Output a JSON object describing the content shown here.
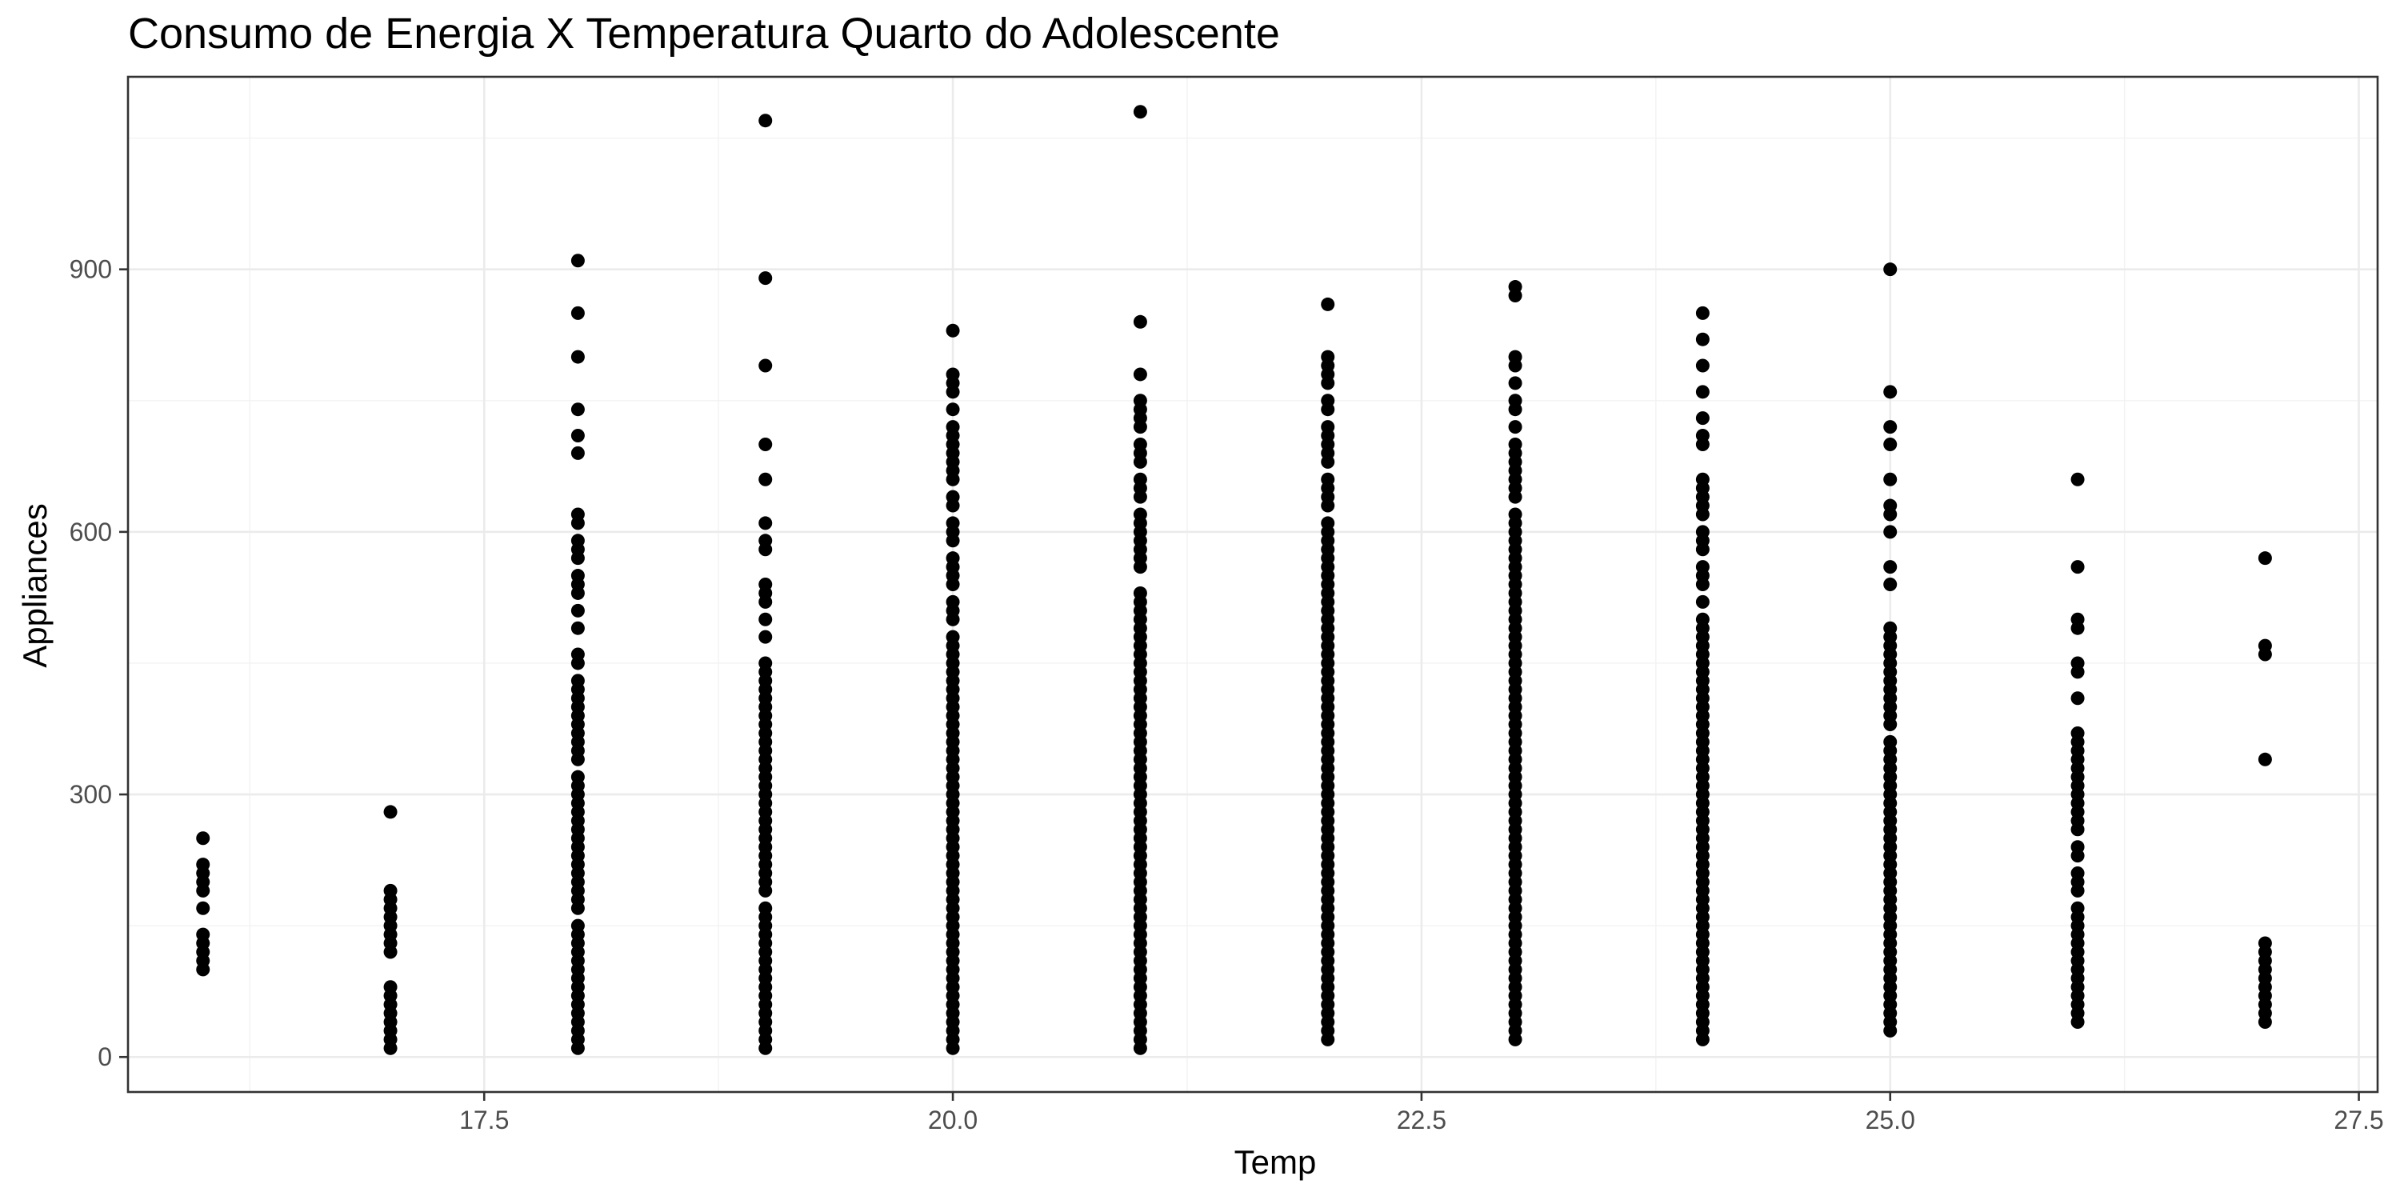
{
  "chart_data": {
    "type": "scatter",
    "title": "Consumo de Energia X Temperatura Quarto do Adolescente",
    "xlabel": "Temp",
    "ylabel": "Appliances",
    "xlim": [
      15.6,
      27.6
    ],
    "ylim": [
      -40,
      1120
    ],
    "x_ticks": [
      17.5,
      20.0,
      22.5,
      25.0,
      27.5
    ],
    "x_tick_labels": [
      "17.5",
      "20.0",
      "22.5",
      "25.0",
      "27.5"
    ],
    "y_ticks": [
      0,
      300,
      600,
      900
    ],
    "y_tick_labels": [
      "0",
      "300",
      "600",
      "900"
    ],
    "grid": true,
    "legend": "none",
    "point_color": "#000000",
    "series": [
      {
        "x": 16,
        "values": [
          100,
          110,
          120,
          130,
          140,
          170,
          190,
          200,
          210,
          220,
          250
        ]
      },
      {
        "x": 17,
        "values": [
          10,
          20,
          30,
          40,
          50,
          60,
          70,
          80,
          120,
          130,
          140,
          150,
          160,
          170,
          180,
          190,
          280
        ]
      },
      {
        "x": 18,
        "values": [
          10,
          20,
          30,
          40,
          50,
          60,
          70,
          80,
          90,
          100,
          110,
          120,
          130,
          140,
          150,
          170,
          180,
          190,
          200,
          210,
          220,
          230,
          240,
          250,
          260,
          270,
          280,
          290,
          300,
          310,
          320,
          340,
          350,
          360,
          370,
          380,
          390,
          400,
          410,
          420,
          430,
          450,
          460,
          490,
          510,
          530,
          540,
          550,
          570,
          580,
          590,
          610,
          620,
          690,
          710,
          740,
          800,
          850,
          910
        ]
      },
      {
        "x": 19,
        "values": [
          10,
          20,
          30,
          40,
          50,
          60,
          70,
          80,
          90,
          100,
          110,
          120,
          130,
          140,
          150,
          160,
          170,
          190,
          200,
          210,
          220,
          230,
          240,
          250,
          260,
          270,
          280,
          290,
          300,
          310,
          320,
          330,
          340,
          350,
          360,
          370,
          380,
          390,
          400,
          410,
          420,
          430,
          440,
          450,
          480,
          500,
          520,
          530,
          540,
          580,
          590,
          610,
          660,
          700,
          790,
          890,
          1070
        ]
      },
      {
        "x": 20,
        "values": [
          10,
          20,
          30,
          40,
          50,
          60,
          70,
          80,
          90,
          100,
          110,
          120,
          130,
          140,
          150,
          160,
          170,
          180,
          190,
          200,
          210,
          220,
          230,
          240,
          250,
          260,
          270,
          280,
          290,
          300,
          310,
          320,
          330,
          340,
          350,
          360,
          370,
          380,
          390,
          400,
          410,
          420,
          430,
          440,
          450,
          460,
          470,
          480,
          500,
          510,
          520,
          540,
          550,
          560,
          570,
          590,
          600,
          610,
          630,
          640,
          660,
          670,
          680,
          690,
          700,
          710,
          720,
          740,
          760,
          770,
          780,
          830
        ]
      },
      {
        "x": 21,
        "values": [
          10,
          20,
          30,
          40,
          50,
          60,
          70,
          80,
          90,
          100,
          110,
          120,
          130,
          140,
          150,
          160,
          170,
          180,
          190,
          200,
          210,
          220,
          230,
          240,
          250,
          260,
          270,
          280,
          290,
          300,
          310,
          320,
          330,
          340,
          350,
          360,
          370,
          380,
          390,
          400,
          410,
          420,
          430,
          440,
          450,
          460,
          470,
          480,
          490,
          500,
          510,
          520,
          530,
          560,
          570,
          580,
          590,
          600,
          610,
          620,
          640,
          650,
          660,
          680,
          690,
          700,
          720,
          730,
          740,
          750,
          780,
          840,
          1080
        ]
      },
      {
        "x": 22,
        "values": [
          20,
          30,
          40,
          50,
          60,
          70,
          80,
          90,
          100,
          110,
          120,
          130,
          140,
          150,
          160,
          170,
          180,
          190,
          200,
          210,
          220,
          230,
          240,
          250,
          260,
          270,
          280,
          290,
          300,
          310,
          320,
          330,
          340,
          350,
          360,
          370,
          380,
          390,
          400,
          410,
          420,
          430,
          440,
          450,
          460,
          470,
          480,
          490,
          500,
          510,
          520,
          530,
          540,
          550,
          560,
          570,
          580,
          590,
          600,
          610,
          630,
          640,
          650,
          660,
          680,
          690,
          700,
          710,
          720,
          740,
          750,
          770,
          780,
          790,
          800,
          860
        ]
      },
      {
        "x": 23,
        "values": [
          20,
          30,
          40,
          50,
          60,
          70,
          80,
          90,
          100,
          110,
          120,
          130,
          140,
          150,
          160,
          170,
          180,
          190,
          200,
          210,
          220,
          230,
          240,
          250,
          260,
          270,
          280,
          290,
          300,
          310,
          320,
          330,
          340,
          350,
          360,
          370,
          380,
          390,
          400,
          410,
          420,
          430,
          440,
          450,
          460,
          470,
          480,
          490,
          500,
          510,
          520,
          530,
          540,
          550,
          560,
          570,
          580,
          590,
          600,
          610,
          620,
          640,
          650,
          660,
          670,
          680,
          690,
          700,
          720,
          740,
          750,
          770,
          790,
          800,
          870,
          880
        ]
      },
      {
        "x": 24,
        "values": [
          20,
          30,
          40,
          50,
          60,
          70,
          80,
          90,
          100,
          110,
          120,
          130,
          140,
          150,
          160,
          170,
          180,
          190,
          200,
          210,
          220,
          230,
          240,
          250,
          260,
          270,
          280,
          290,
          300,
          310,
          320,
          330,
          340,
          350,
          360,
          370,
          380,
          390,
          400,
          410,
          420,
          430,
          440,
          450,
          460,
          470,
          480,
          490,
          500,
          520,
          540,
          550,
          560,
          580,
          590,
          600,
          620,
          630,
          640,
          650,
          660,
          700,
          710,
          730,
          760,
          790,
          820,
          850
        ]
      },
      {
        "x": 25,
        "values": [
          30,
          40,
          50,
          60,
          70,
          80,
          90,
          100,
          110,
          120,
          130,
          140,
          150,
          160,
          170,
          180,
          190,
          200,
          210,
          220,
          230,
          240,
          250,
          260,
          270,
          280,
          290,
          300,
          310,
          320,
          330,
          340,
          350,
          360,
          380,
          390,
          400,
          410,
          420,
          430,
          440,
          450,
          460,
          470,
          480,
          490,
          540,
          560,
          600,
          620,
          630,
          660,
          700,
          720,
          760,
          900
        ]
      },
      {
        "x": 26,
        "values": [
          40,
          50,
          60,
          70,
          80,
          90,
          100,
          110,
          120,
          130,
          140,
          150,
          160,
          170,
          190,
          200,
          210,
          230,
          240,
          260,
          270,
          280,
          290,
          300,
          310,
          320,
          330,
          340,
          350,
          360,
          370,
          410,
          440,
          450,
          490,
          500,
          560,
          660
        ]
      },
      {
        "x": 27,
        "values": [
          40,
          50,
          60,
          70,
          80,
          90,
          100,
          110,
          120,
          130,
          340,
          460,
          470,
          570
        ]
      }
    ]
  }
}
